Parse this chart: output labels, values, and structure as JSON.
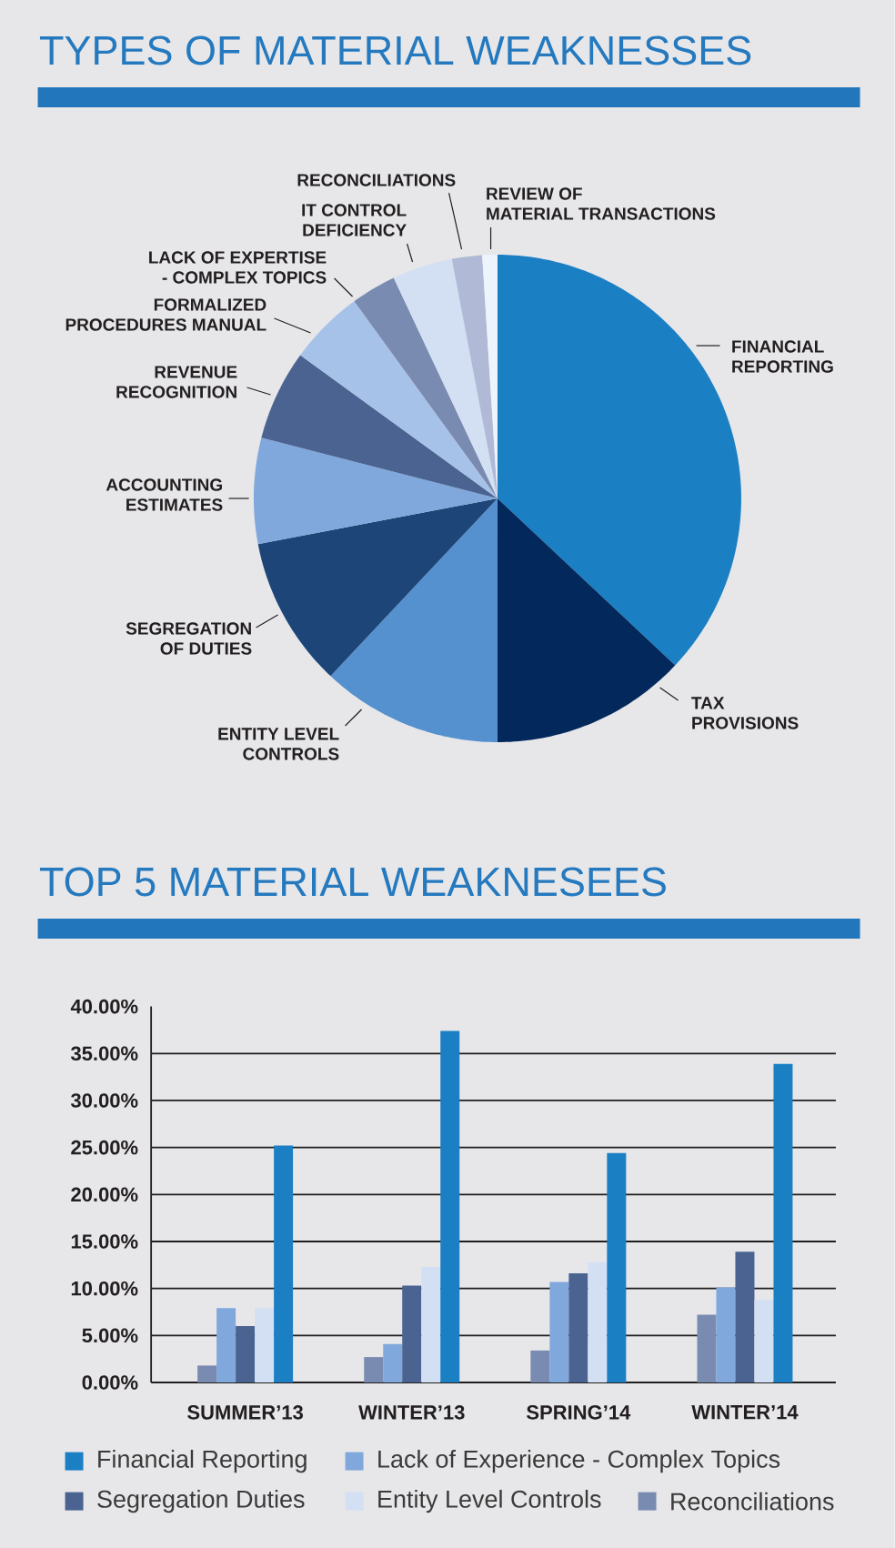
{
  "chart_data": [
    {
      "type": "pie",
      "title": "TYPES OF MATERIAL WEAKNESSES",
      "categories": [
        "FINANCIAL REPORTING",
        "TAX PROVISIONS",
        "ENTITY LEVEL CONTROLS",
        "SEGREGATION OF DUTIES",
        "ACCOUNTING ESTIMATES",
        "REVENUE RECOGNITION",
        "FORMALIZED PROCEDURES MANUAL",
        "LACK OF EXPERTISE - COMPLEX TOPICS",
        "IT CONTROL DEFICIENCY",
        "RECONCILIATIONS",
        "REVIEW OF MATERIAL TRANSACTIONS"
      ],
      "values": [
        37,
        13,
        12,
        10,
        7,
        6,
        5,
        3,
        4,
        2,
        1
      ],
      "colors": [
        "#1b7fc4",
        "#03295c",
        "#5590cf",
        "#1d4577",
        "#80a8dc",
        "#4a6391",
        "#a7c2e8",
        "#7a8bb1",
        "#d3e0f3",
        "#b0bad7",
        "#eef4fc"
      ]
    },
    {
      "type": "bar",
      "title": "TOP 5 MATERIAL WEAKNESEES",
      "categories": [
        "SUMMER’13",
        "WINTER’13",
        "SPRING’14",
        "WINTER’14"
      ],
      "series": [
        {
          "name": "Reconciliations",
          "color": "#7a8bb1",
          "values": [
            1.8,
            2.7,
            3.4,
            7.2
          ]
        },
        {
          "name": "Lack of Experience - Complex Topics",
          "color": "#80a8dc",
          "values": [
            7.9,
            4.1,
            10.7,
            10.1
          ]
        },
        {
          "name": "Segregation Duties",
          "color": "#4a6391",
          "values": [
            6.0,
            10.3,
            11.6,
            13.9
          ]
        },
        {
          "name": "Entity Level Controls",
          "color": "#d3e0f3",
          "values": [
            7.9,
            12.3,
            12.8,
            8.8
          ]
        },
        {
          "name": "Financial Reporting",
          "color": "#1b7fc4",
          "values": [
            25.2,
            37.4,
            24.4,
            33.9
          ]
        }
      ],
      "ylim": [
        0,
        40
      ],
      "yticks": [
        {
          "value": 0,
          "label": "0.00%"
        },
        {
          "value": 5,
          "label": "5.00%"
        },
        {
          "value": 10,
          "label": "10.00%"
        },
        {
          "value": 15,
          "label": "15.00%"
        },
        {
          "value": 20,
          "label": "20.00%"
        },
        {
          "value": 25,
          "label": "25.00%"
        },
        {
          "value": 30,
          "label": "30.00%"
        },
        {
          "value": 35,
          "label": "35.00%"
        },
        {
          "value": 40,
          "label": "40.00%"
        }
      ],
      "grid": "y",
      "legend": "bottom"
    }
  ]
}
